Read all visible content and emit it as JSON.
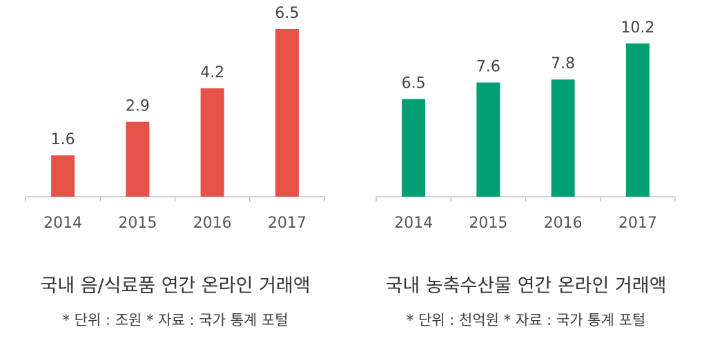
{
  "chart_data": [
    {
      "type": "bar",
      "categories": [
        "2014",
        "2015",
        "2016",
        "2017"
      ],
      "values": [
        1.6,
        2.9,
        4.2,
        6.5
      ],
      "value_labels": [
        "1.6",
        "2.9",
        "4.2",
        "6.5"
      ],
      "title": "국내 음/식료품 연간 온라인 거래액",
      "note": "* 단위 : 조원   * 자료 : 국가 통계 포털",
      "color": "#E8504A",
      "ylim": [
        0,
        6.5
      ],
      "grid": false
    },
    {
      "type": "bar",
      "categories": [
        "2014",
        "2015",
        "2016",
        "2017"
      ],
      "values": [
        6.5,
        7.6,
        7.8,
        10.2
      ],
      "value_labels": [
        "6.5",
        "7.6",
        "7.8",
        "10.2"
      ],
      "title": "국내 농축수산물 연간 온라인 거래액",
      "note": "* 단위 : 천억원   * 자료 : 국가 통계 포털",
      "color": "#009E73",
      "ylim": [
        0,
        10.2
      ],
      "grid": false
    }
  ]
}
